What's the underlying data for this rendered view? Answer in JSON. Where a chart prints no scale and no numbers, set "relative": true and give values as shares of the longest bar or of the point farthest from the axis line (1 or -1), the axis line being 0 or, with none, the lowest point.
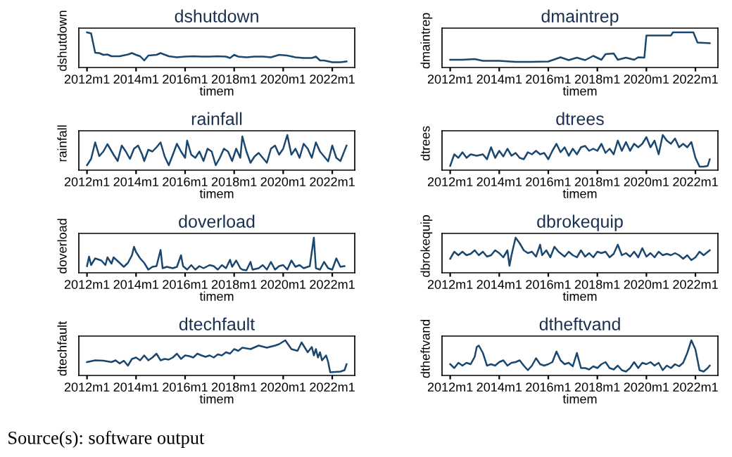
{
  "chart_data": [
    {
      "type": "line",
      "title": "dshutdown",
      "ylabel": "dshutdown",
      "xlabel": "timem",
      "relative": true,
      "tick_labels": "x",
      "color": "#1a476f",
      "xlim": [
        "2011-09",
        "2022-12"
      ],
      "xticks": [
        {
          "value": "2012-01",
          "label": "2012m1"
        },
        {
          "value": "2014-01",
          "label": "2014m1"
        },
        {
          "value": "2016-01",
          "label": "2016m1"
        },
        {
          "value": "2018-01",
          "label": "2018m1"
        },
        {
          "value": "2020-01",
          "label": "2020m1"
        },
        {
          "value": "2022-01",
          "label": "2022m1"
        }
      ],
      "x": [
        "2012-01",
        "2012-03",
        "2012-05",
        "2012-07",
        "2012-09",
        "2012-11",
        "2013-01",
        "2013-05",
        "2013-09",
        "2013-11",
        "2014-01",
        "2014-03",
        "2014-05",
        "2014-07",
        "2014-11",
        "2015-01",
        "2015-05",
        "2015-09",
        "2016-01",
        "2016-05",
        "2016-09",
        "2017-01",
        "2017-05",
        "2017-09",
        "2017-11",
        "2018-01",
        "2018-03",
        "2018-07",
        "2018-11",
        "2019-03",
        "2019-07",
        "2019-11",
        "2020-03",
        "2020-07",
        "2020-11",
        "2021-03",
        "2021-05",
        "2021-07",
        "2021-09",
        "2022-01",
        "2022-05",
        "2022-08"
      ],
      "values": [
        1.0,
        0.97,
        0.42,
        0.41,
        0.36,
        0.37,
        0.32,
        0.32,
        0.37,
        0.41,
        0.36,
        0.32,
        0.2,
        0.34,
        0.36,
        0.41,
        0.32,
        0.29,
        0.31,
        0.32,
        0.31,
        0.31,
        0.32,
        0.31,
        0.27,
        0.36,
        0.31,
        0.29,
        0.31,
        0.31,
        0.29,
        0.36,
        0.34,
        0.29,
        0.27,
        0.27,
        0.31,
        0.2,
        0.2,
        0.15,
        0.15,
        0.17
      ]
    },
    {
      "type": "line",
      "title": "dmaintrep",
      "ylabel": "dmaintrep",
      "xlabel": "timem",
      "relative": true,
      "tick_labels": "x",
      "color": "#1a476f",
      "xlim": [
        "2011-09",
        "2022-12"
      ],
      "xticks": [
        {
          "value": "2012-01",
          "label": "2012m1"
        },
        {
          "value": "2014-01",
          "label": "2014m1"
        },
        {
          "value": "2016-01",
          "label": "2016m1"
        },
        {
          "value": "2018-01",
          "label": "2018m1"
        },
        {
          "value": "2020-01",
          "label": "2020m1"
        },
        {
          "value": "2022-01",
          "label": "2022m1"
        }
      ],
      "x": [
        "2012-01",
        "2012-07",
        "2013-01",
        "2013-05",
        "2014-01",
        "2014-09",
        "2015-05",
        "2016-01",
        "2016-07",
        "2016-11",
        "2017-03",
        "2017-07",
        "2017-11",
        "2018-03",
        "2018-05",
        "2018-09",
        "2018-11",
        "2019-03",
        "2019-07",
        "2019-09",
        "2019-12",
        "2020-01",
        "2021-01",
        "2021-02",
        "2021-12",
        "2022-02",
        "2022-08"
      ],
      "values": [
        0.22,
        0.22,
        0.24,
        0.19,
        0.19,
        0.16,
        0.16,
        0.17,
        0.29,
        0.21,
        0.28,
        0.21,
        0.33,
        0.22,
        0.38,
        0.4,
        0.22,
        0.28,
        0.22,
        0.29,
        0.28,
        0.91,
        0.91,
        1.0,
        1.0,
        0.71,
        0.69
      ]
    },
    {
      "type": "line",
      "title": "rainfall",
      "ylabel": "rainfall",
      "xlabel": "timem",
      "relative": true,
      "tick_labels": "x",
      "color": "#1a476f",
      "xlim": [
        "2011-09",
        "2022-12"
      ],
      "xticks": [
        {
          "value": "2012-01",
          "label": "2012m1"
        },
        {
          "value": "2014-01",
          "label": "2014m1"
        },
        {
          "value": "2016-01",
          "label": "2016m1"
        },
        {
          "value": "2018-01",
          "label": "2018m1"
        },
        {
          "value": "2020-01",
          "label": "2020m1"
        },
        {
          "value": "2022-01",
          "label": "2022m1"
        }
      ],
      "x": [
        "2012-01",
        "2012-03",
        "2012-05",
        "2012-07",
        "2012-09",
        "2012-11",
        "2013-02",
        "2013-04",
        "2013-06",
        "2013-08",
        "2013-10",
        "2013-12",
        "2014-02",
        "2014-04",
        "2014-05",
        "2014-07",
        "2014-09",
        "2014-11",
        "2015-01",
        "2015-03",
        "2015-05",
        "2015-07",
        "2015-09",
        "2015-11",
        "2016-01",
        "2016-02",
        "2016-04",
        "2016-06",
        "2016-08",
        "2016-10",
        "2016-12",
        "2017-02",
        "2017-04",
        "2017-06",
        "2017-08",
        "2017-10",
        "2017-12",
        "2018-02",
        "2018-04",
        "2018-05",
        "2018-07",
        "2018-09",
        "2018-11",
        "2019-01",
        "2019-03",
        "2019-05",
        "2019-07",
        "2019-09",
        "2019-11",
        "2020-01",
        "2020-03",
        "2020-05",
        "2020-07",
        "2020-09",
        "2020-11",
        "2021-01",
        "2021-03",
        "2021-05",
        "2021-07",
        "2021-09",
        "2021-11",
        "2022-01",
        "2022-03",
        "2022-05",
        "2022-08"
      ],
      "values": [
        0.14,
        0.32,
        0.79,
        0.4,
        0.53,
        0.74,
        0.44,
        0.26,
        0.7,
        0.53,
        0.32,
        0.61,
        0.7,
        0.44,
        0.26,
        0.58,
        0.53,
        0.65,
        0.79,
        0.39,
        0.14,
        0.44,
        0.75,
        0.53,
        0.35,
        0.84,
        0.44,
        0.35,
        0.53,
        0.26,
        0.61,
        0.53,
        0.14,
        0.35,
        0.61,
        0.53,
        0.26,
        0.61,
        0.35,
        0.96,
        0.53,
        0.21,
        0.39,
        0.49,
        0.35,
        0.21,
        0.61,
        0.7,
        0.44,
        0.61,
        1.0,
        0.44,
        0.61,
        0.35,
        0.75,
        0.61,
        0.35,
        0.79,
        0.53,
        0.39,
        0.25,
        0.7,
        0.35,
        0.26,
        0.7
      ]
    },
    {
      "type": "line",
      "title": "dtrees",
      "ylabel": "dtrees",
      "xlabel": "timem",
      "relative": true,
      "tick_labels": "x",
      "color": "#1a476f",
      "xlim": [
        "2011-09",
        "2022-12"
      ],
      "xticks": [
        {
          "value": "2012-01",
          "label": "2012m1"
        },
        {
          "value": "2014-01",
          "label": "2014m1"
        },
        {
          "value": "2016-01",
          "label": "2016m1"
        },
        {
          "value": "2018-01",
          "label": "2018m1"
        },
        {
          "value": "2020-01",
          "label": "2020m1"
        },
        {
          "value": "2022-01",
          "label": "2022m1"
        }
      ],
      "x": [
        "2012-01",
        "2012-03",
        "2012-05",
        "2012-07",
        "2012-09",
        "2012-11",
        "2013-02",
        "2013-05",
        "2013-07",
        "2013-09",
        "2013-11",
        "2014-01",
        "2014-03",
        "2014-05",
        "2014-07",
        "2014-09",
        "2014-11",
        "2015-01",
        "2015-03",
        "2015-05",
        "2015-07",
        "2015-09",
        "2015-11",
        "2016-01",
        "2016-03",
        "2016-05",
        "2016-07",
        "2016-09",
        "2016-11",
        "2017-01",
        "2017-03",
        "2017-05",
        "2017-07",
        "2017-09",
        "2017-11",
        "2018-01",
        "2018-03",
        "2018-05",
        "2018-07",
        "2018-09",
        "2018-11",
        "2019-01",
        "2019-03",
        "2019-05",
        "2019-07",
        "2019-09",
        "2019-11",
        "2020-01",
        "2020-03",
        "2020-05",
        "2020-07",
        "2020-09",
        "2020-11",
        "2021-01",
        "2021-03",
        "2021-05",
        "2021-07",
        "2021-09",
        "2021-11",
        "2022-01",
        "2022-03",
        "2022-05",
        "2022-07",
        "2022-08"
      ],
      "values": [
        0.12,
        0.45,
        0.35,
        0.51,
        0.35,
        0.45,
        0.41,
        0.45,
        0.31,
        0.65,
        0.35,
        0.55,
        0.39,
        0.61,
        0.41,
        0.49,
        0.35,
        0.31,
        0.51,
        0.45,
        0.55,
        0.45,
        0.49,
        0.31,
        0.55,
        0.75,
        0.51,
        0.65,
        0.41,
        0.61,
        0.45,
        0.65,
        0.69,
        0.55,
        0.61,
        0.55,
        0.75,
        0.49,
        0.61,
        0.45,
        0.84,
        0.55,
        0.8,
        0.55,
        0.75,
        0.65,
        0.75,
        0.94,
        0.65,
        0.84,
        0.45,
        1.0,
        0.84,
        0.75,
        0.9,
        0.65,
        0.75,
        0.65,
        0.8,
        0.35,
        0.1,
        0.1,
        0.12,
        0.31
      ]
    },
    {
      "type": "line",
      "title": "doverload",
      "ylabel": "doverload",
      "xlabel": "timem",
      "relative": true,
      "tick_labels": "x",
      "color": "#1a476f",
      "xlim": [
        "2011-09",
        "2022-12"
      ],
      "xticks": [
        {
          "value": "2012-01",
          "label": "2012m1"
        },
        {
          "value": "2014-01",
          "label": "2014m1"
        },
        {
          "value": "2016-01",
          "label": "2016m1"
        },
        {
          "value": "2018-01",
          "label": "2018m1"
        },
        {
          "value": "2020-01",
          "label": "2020m1"
        },
        {
          "value": "2022-01",
          "label": "2022m1"
        }
      ],
      "x": [
        "2012-01",
        "2012-02",
        "2012-03",
        "2012-05",
        "2012-08",
        "2012-10",
        "2012-11",
        "2013-01",
        "2013-02",
        "2013-05",
        "2013-07",
        "2013-09",
        "2013-11",
        "2013-12",
        "2014-01",
        "2014-03",
        "2014-05",
        "2014-07",
        "2014-09",
        "2014-11",
        "2015-01",
        "2015-02",
        "2015-04",
        "2015-07",
        "2015-09",
        "2015-11",
        "2015-12",
        "2016-02",
        "2016-04",
        "2016-06",
        "2016-08",
        "2016-10",
        "2017-01",
        "2017-03",
        "2017-05",
        "2017-07",
        "2017-09",
        "2017-11",
        "2017-12",
        "2018-02",
        "2018-04",
        "2018-05",
        "2018-07",
        "2018-09",
        "2018-10",
        "2019-01",
        "2019-03",
        "2019-05",
        "2019-07",
        "2019-09",
        "2019-11",
        "2020-01",
        "2020-03",
        "2020-05",
        "2020-07",
        "2020-09",
        "2020-11",
        "2021-02",
        "2021-04",
        "2021-05",
        "2021-07",
        "2021-09",
        "2021-11",
        "2022-01",
        "2022-03",
        "2022-05",
        "2022-07"
      ],
      "values": [
        0.19,
        0.46,
        0.22,
        0.41,
        0.35,
        0.22,
        0.44,
        0.26,
        0.44,
        0.28,
        0.17,
        0.28,
        0.5,
        0.74,
        0.59,
        0.41,
        0.28,
        0.09,
        0.17,
        0.19,
        0.65,
        0.13,
        0.17,
        0.13,
        0.17,
        0.5,
        0.19,
        0.09,
        0.22,
        0.09,
        0.19,
        0.13,
        0.22,
        0.19,
        0.09,
        0.22,
        0.13,
        0.37,
        0.17,
        0.35,
        0.13,
        0.09,
        0.07,
        0.31,
        0.09,
        0.13,
        0.22,
        0.09,
        0.31,
        0.09,
        0.19,
        0.22,
        0.09,
        0.35,
        0.17,
        0.22,
        0.13,
        0.19,
        1.0,
        0.13,
        0.09,
        0.31,
        0.13,
        0.09,
        0.41,
        0.17,
        0.19
      ]
    },
    {
      "type": "line",
      "title": "dbrokequip",
      "ylabel": "dbrokequip",
      "xlabel": "timem",
      "relative": true,
      "tick_labels": "x",
      "color": "#1a476f",
      "xlim": [
        "2011-09",
        "2022-12"
      ],
      "xticks": [
        {
          "value": "2012-01",
          "label": "2012m1"
        },
        {
          "value": "2014-01",
          "label": "2014m1"
        },
        {
          "value": "2016-01",
          "label": "2016m1"
        },
        {
          "value": "2018-01",
          "label": "2018m1"
        },
        {
          "value": "2020-01",
          "label": "2020m1"
        },
        {
          "value": "2022-01",
          "label": "2022m1"
        }
      ],
      "x": [
        "2012-01",
        "2012-03",
        "2012-05",
        "2012-07",
        "2012-09",
        "2012-11",
        "2013-01",
        "2013-03",
        "2013-05",
        "2013-07",
        "2013-09",
        "2013-11",
        "2014-01",
        "2014-03",
        "2014-05",
        "2014-06",
        "2014-07",
        "2014-09",
        "2014-11",
        "2015-01",
        "2015-03",
        "2015-05",
        "2015-07",
        "2015-09",
        "2015-10",
        "2015-12",
        "2016-02",
        "2016-04",
        "2016-06",
        "2016-09",
        "2016-11",
        "2017-01",
        "2017-03",
        "2017-05",
        "2017-07",
        "2017-09",
        "2017-11",
        "2018-01",
        "2018-03",
        "2018-05",
        "2018-07",
        "2018-09",
        "2018-11",
        "2019-01",
        "2019-03",
        "2019-05",
        "2019-07",
        "2019-09",
        "2019-11",
        "2020-01",
        "2020-03",
        "2020-05",
        "2020-07",
        "2020-09",
        "2020-11",
        "2021-01",
        "2021-03",
        "2021-05",
        "2021-07",
        "2021-09",
        "2021-11",
        "2022-01",
        "2022-03",
        "2022-05",
        "2022-08"
      ],
      "values": [
        0.4,
        0.6,
        0.5,
        0.6,
        0.5,
        0.54,
        0.64,
        0.5,
        0.6,
        0.46,
        0.5,
        0.64,
        0.56,
        0.44,
        0.64,
        0.2,
        0.5,
        1.0,
        0.84,
        0.64,
        0.56,
        0.6,
        0.46,
        0.8,
        0.5,
        0.64,
        0.44,
        0.74,
        0.6,
        0.46,
        0.6,
        0.5,
        0.44,
        0.64,
        0.46,
        0.56,
        0.44,
        0.6,
        0.56,
        0.6,
        0.44,
        0.54,
        0.8,
        0.5,
        0.56,
        0.46,
        0.6,
        0.44,
        0.7,
        0.46,
        0.56,
        0.44,
        0.6,
        0.5,
        0.54,
        0.5,
        0.56,
        0.5,
        0.4,
        0.5,
        0.36,
        0.44,
        0.6,
        0.5,
        0.64
      ]
    },
    {
      "type": "line",
      "title": "dtechfault",
      "ylabel": "dtechfault",
      "xlabel": "timem",
      "relative": true,
      "tick_labels": "x",
      "color": "#1a476f",
      "xlim": [
        "2011-09",
        "2022-12"
      ],
      "xticks": [
        {
          "value": "2012-01",
          "label": "2012m1"
        },
        {
          "value": "2014-01",
          "label": "2014m1"
        },
        {
          "value": "2016-01",
          "label": "2016m1"
        },
        {
          "value": "2018-01",
          "label": "2018m1"
        },
        {
          "value": "2020-01",
          "label": "2020m1"
        },
        {
          "value": "2022-01",
          "label": "2022m1"
        }
      ],
      "x": [
        "2012-01",
        "2012-05",
        "2012-09",
        "2013-01",
        "2013-03",
        "2013-05",
        "2013-07",
        "2013-09",
        "2013-11",
        "2014-01",
        "2014-03",
        "2014-05",
        "2014-07",
        "2014-09",
        "2014-11",
        "2015-01",
        "2015-03",
        "2015-05",
        "2015-07",
        "2015-09",
        "2015-11",
        "2016-01",
        "2016-03",
        "2016-05",
        "2016-07",
        "2016-09",
        "2016-11",
        "2017-01",
        "2017-03",
        "2017-05",
        "2017-07",
        "2017-09",
        "2017-11",
        "2018-01",
        "2018-03",
        "2018-05",
        "2018-09",
        "2019-01",
        "2019-05",
        "2019-09",
        "2019-11",
        "2020-02",
        "2020-05",
        "2020-08",
        "2020-10",
        "2021-01",
        "2021-03",
        "2021-04",
        "2021-05",
        "2021-06",
        "2021-07",
        "2021-08",
        "2021-10",
        "2021-11",
        "2021-12",
        "2022-05",
        "2022-07",
        "2022-08"
      ],
      "values": [
        0.38,
        0.43,
        0.42,
        0.38,
        0.43,
        0.34,
        0.42,
        0.28,
        0.47,
        0.51,
        0.43,
        0.57,
        0.43,
        0.51,
        0.62,
        0.43,
        0.47,
        0.45,
        0.51,
        0.62,
        0.47,
        0.57,
        0.55,
        0.51,
        0.62,
        0.57,
        0.53,
        0.57,
        0.51,
        0.6,
        0.57,
        0.66,
        0.62,
        0.75,
        0.7,
        0.79,
        0.75,
        0.85,
        0.79,
        0.85,
        0.89,
        1.0,
        0.75,
        0.7,
        0.94,
        0.66,
        0.81,
        0.57,
        0.75,
        0.51,
        0.66,
        0.43,
        0.57,
        0.38,
        0.09,
        0.11,
        0.15,
        0.32
      ]
    },
    {
      "type": "line",
      "title": "dtheftvand",
      "ylabel": "dtheftvand",
      "xlabel": "timem",
      "relative": true,
      "tick_labels": "x",
      "color": "#1a476f",
      "xlim": [
        "2011-09",
        "2022-12"
      ],
      "xticks": [
        {
          "value": "2012-01",
          "label": "2012m1"
        },
        {
          "value": "2014-01",
          "label": "2014m1"
        },
        {
          "value": "2016-01",
          "label": "2016m1"
        },
        {
          "value": "2018-01",
          "label": "2018m1"
        },
        {
          "value": "2020-01",
          "label": "2020m1"
        },
        {
          "value": "2022-01",
          "label": "2022m1"
        }
      ],
      "x": [
        "2012-01",
        "2012-03",
        "2012-05",
        "2012-07",
        "2012-09",
        "2012-11",
        "2013-01",
        "2013-02",
        "2013-03",
        "2013-05",
        "2013-07",
        "2013-09",
        "2013-11",
        "2014-01",
        "2014-03",
        "2014-05",
        "2014-07",
        "2014-09",
        "2014-11",
        "2015-01",
        "2015-03",
        "2015-05",
        "2015-07",
        "2015-09",
        "2015-11",
        "2016-01",
        "2016-03",
        "2016-05",
        "2016-07",
        "2016-09",
        "2016-11",
        "2017-01",
        "2017-03",
        "2017-05",
        "2017-07",
        "2017-09",
        "2017-11",
        "2018-01",
        "2018-03",
        "2018-05",
        "2018-07",
        "2018-09",
        "2018-11",
        "2019-01",
        "2019-03",
        "2019-05",
        "2019-07",
        "2019-09",
        "2019-11",
        "2020-01",
        "2020-03",
        "2020-05",
        "2020-07",
        "2020-09",
        "2020-11",
        "2021-01",
        "2021-03",
        "2021-05",
        "2021-07",
        "2021-09",
        "2021-11",
        "2022-01",
        "2022-03",
        "2022-05",
        "2022-07",
        "2022-08"
      ],
      "values": [
        0.32,
        0.21,
        0.36,
        0.28,
        0.36,
        0.32,
        0.53,
        0.81,
        0.85,
        0.64,
        0.28,
        0.32,
        0.28,
        0.38,
        0.43,
        0.28,
        0.36,
        0.38,
        0.43,
        0.28,
        0.15,
        0.28,
        0.49,
        0.32,
        0.28,
        0.32,
        0.38,
        0.68,
        0.43,
        0.32,
        0.36,
        0.26,
        0.64,
        0.21,
        0.21,
        0.17,
        0.26,
        0.21,
        0.32,
        0.38,
        0.21,
        0.17,
        0.28,
        0.15,
        0.11,
        0.21,
        0.38,
        0.21,
        0.36,
        0.32,
        0.38,
        0.28,
        0.36,
        0.15,
        0.28,
        0.21,
        0.32,
        0.26,
        0.36,
        0.64,
        1.0,
        0.74,
        0.15,
        0.11,
        0.21,
        0.28
      ],
      "annotations": [
        "Source(s): software output"
      ]
    }
  ]
}
